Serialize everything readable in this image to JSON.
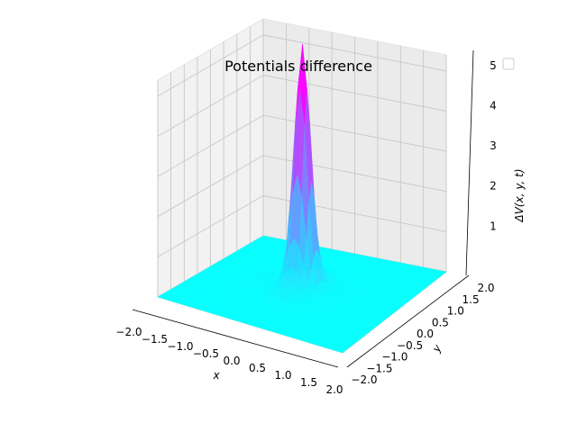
{
  "chart_data": {
    "type": "surface3d",
    "title": "Potentials difference",
    "xlabel": "x",
    "ylabel": "y",
    "zlabel": "ΔV(x, y, t)",
    "xlim": [
      -2.0,
      2.0
    ],
    "ylim": [
      -2.0,
      2.0
    ],
    "zlim": [
      0,
      5.4
    ],
    "x_ticks": [
      "−2.0",
      "−1.5",
      "−1.0",
      "−0.5",
      "0.0",
      "0.5",
      "1.0",
      "1.5",
      "2.0"
    ],
    "y_ticks": [
      "−2.0",
      "−1.5",
      "−1.0",
      "−0.5",
      "0.0",
      "0.5",
      "1.0",
      "1.5",
      "2.0"
    ],
    "z_ticks": [
      "1",
      "2",
      "3",
      "4",
      "5"
    ],
    "peak": {
      "x": 0.0,
      "y": 0.0,
      "z": 5.2
    },
    "colormap": [
      "#00ffff",
      "#ff00ff"
    ],
    "grid": true,
    "legend": {
      "placement": "top-right",
      "entries": []
    }
  }
}
